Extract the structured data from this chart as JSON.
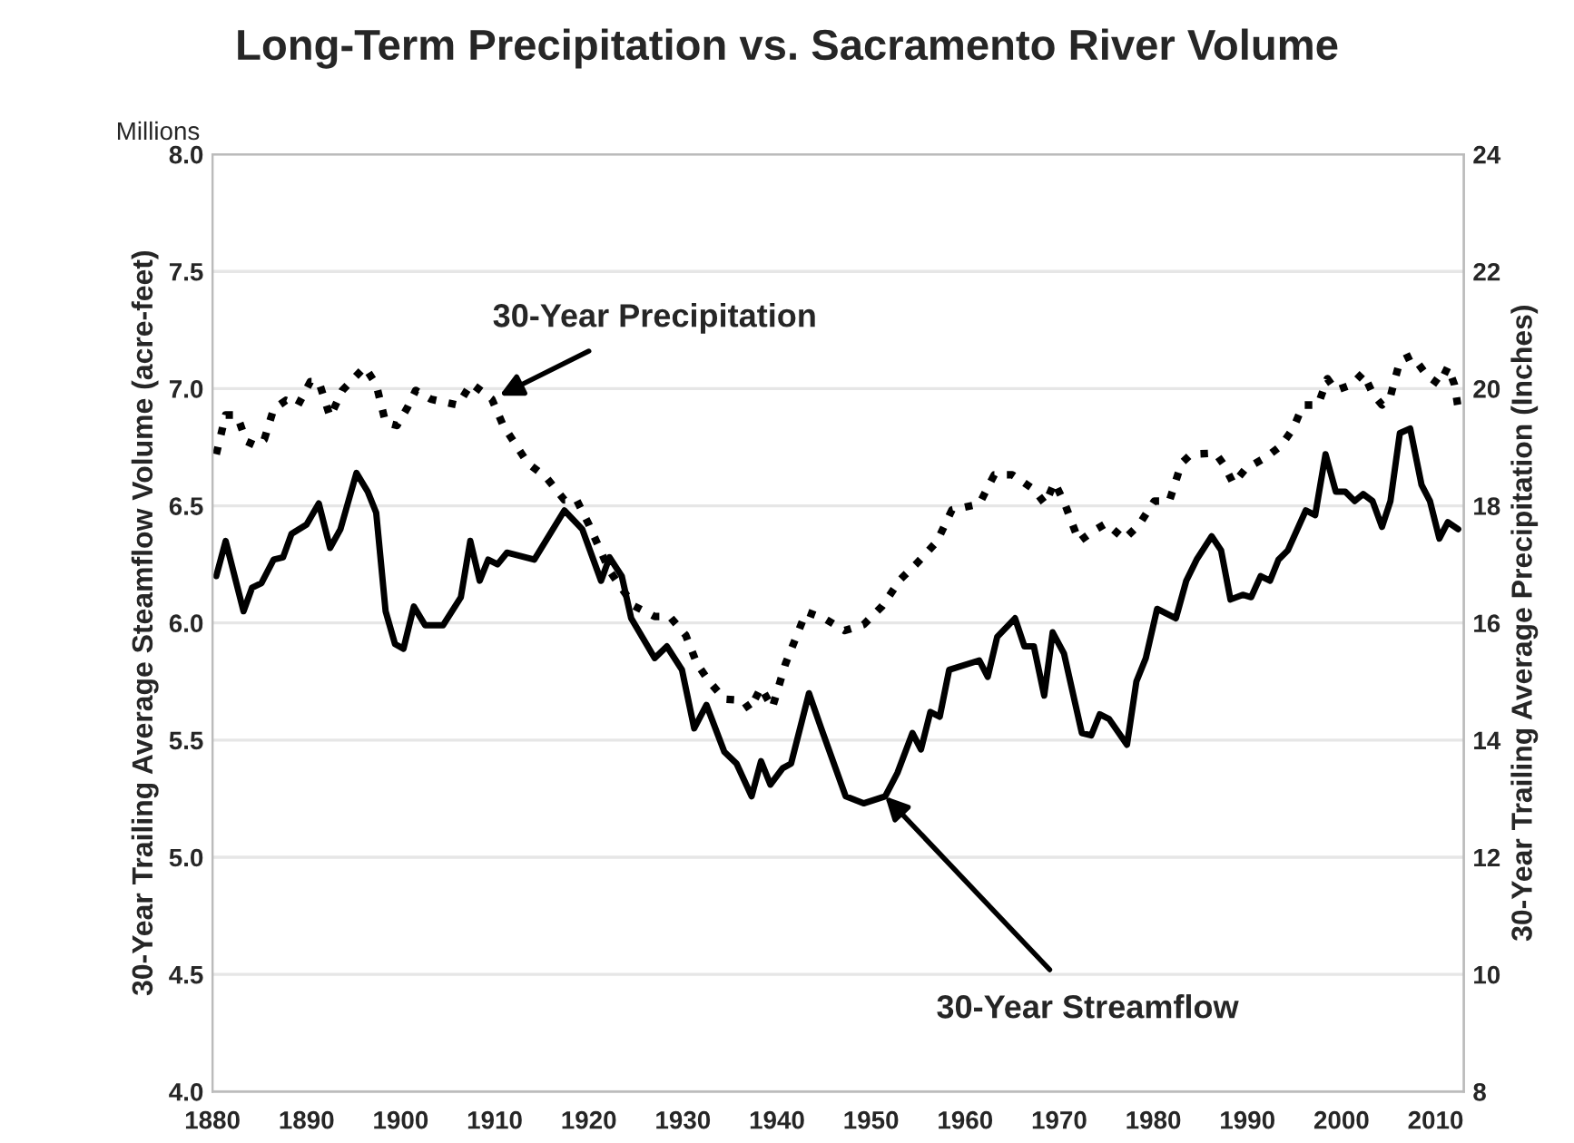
{
  "chart_data": {
    "type": "line",
    "title": "Long-Term Precipitation vs. Sacramento River Volume",
    "ylabel": "30-Year Trailing Average Steamflow Volume (acre-feet)",
    "y2label": "30-Year Trailing Average Precipitation (Inches)",
    "annotations": [
      "Millions",
      {
        "text": "30-Year Precipitation",
        "x": 1910.5,
        "y": 6.97
      },
      {
        "text": "30-Year Streamflow",
        "x": 1951.5,
        "y": 5.26
      }
    ],
    "series": [
      {
        "line_style": "solid",
        "color": "#000000",
        "x": [
          1880.4,
          1881.4,
          1883.3,
          1884.2,
          1885.2,
          1886.5,
          1887.5,
          1888.4,
          1890.0,
          1891.3,
          1892.5,
          1893.6,
          1895.3,
          1896.5,
          1897.4,
          1898.4,
          1899.4,
          1900.3,
          1901.4,
          1902.6,
          1904.5,
          1906.4,
          1907.4,
          1908.4,
          1909.3,
          1910.3,
          1911.3,
          1914.2,
          1917.4,
          1919.3,
          1921.3,
          1922.2,
          1923.5,
          1924.5,
          1927.0,
          1928.3,
          1929.9,
          1931.2,
          1932.5,
          1934.4,
          1935.7,
          1937.3,
          1938.3,
          1939.3,
          1940.6,
          1941.5,
          1943.4,
          1944.7,
          1947.3,
          1949.2,
          1951.5,
          1952.8,
          1954.4,
          1955.3,
          1956.3,
          1957.3,
          1958.3,
          1961.5,
          1962.4,
          1963.4,
          1965.3,
          1966.3,
          1967.3,
          1968.4,
          1969.3,
          1970.5,
          1972.4,
          1973.4,
          1974.3,
          1975.3,
          1977.2,
          1978.2,
          1979.2,
          1980.4,
          1982.4,
          1983.5,
          1984.6,
          1986.2,
          1987.2,
          1988.2,
          1989.5,
          1990.4,
          1991.4,
          1992.4,
          1993.3,
          1994.3,
          1996.2,
          1997.2,
          1998.3,
          1999.4,
          2000.4,
          2001.4,
          2002.3,
          2003.3,
          2004.3,
          2005.2,
          2006.2,
          2007.3,
          2008.5,
          2009.4,
          2010.4,
          2011.3,
          2012.4
        ],
        "values": [
          6.2,
          6.35,
          6.05,
          6.15,
          6.17,
          6.27,
          6.28,
          6.38,
          6.42,
          6.51,
          6.32,
          6.4,
          6.64,
          6.56,
          6.47,
          6.05,
          5.91,
          5.89,
          6.07,
          5.99,
          5.99,
          6.11,
          6.35,
          6.18,
          6.27,
          6.25,
          6.3,
          6.27,
          6.48,
          6.4,
          6.18,
          6.28,
          6.2,
          6.02,
          5.85,
          5.9,
          5.8,
          5.55,
          5.65,
          5.45,
          5.4,
          5.26,
          5.41,
          5.31,
          5.38,
          5.4,
          5.7,
          5.55,
          5.26,
          5.23,
          5.26,
          5.36,
          5.53,
          5.46,
          5.62,
          5.6,
          5.8,
          5.84,
          5.77,
          5.94,
          6.02,
          5.9,
          5.9,
          5.69,
          5.96,
          5.87,
          5.53,
          5.52,
          5.61,
          5.59,
          5.48,
          5.75,
          5.85,
          6.06,
          6.02,
          6.18,
          6.27,
          6.37,
          6.31,
          6.1,
          6.12,
          6.11,
          6.2,
          6.18,
          6.27,
          6.31,
          6.48,
          6.46,
          6.72,
          6.56,
          6.56,
          6.52,
          6.55,
          6.52,
          6.41,
          6.52,
          6.81,
          6.83,
          6.59,
          6.52,
          6.36,
          6.43,
          6.4
        ]
      },
      {
        "line_style": "dotted",
        "axis": "y2",
        "color": "#000000",
        "x": [
          1880.4,
          1881.4,
          1882.6,
          1883.6,
          1884.6,
          1885.5,
          1886.5,
          1887.8,
          1889.1,
          1890.4,
          1891.3,
          1892.5,
          1893.8,
          1896.2,
          1897.4,
          1898.4,
          1899.6,
          1900.7,
          1901.6,
          1903.2,
          1906.1,
          1907.5,
          1909.7,
          1910.9,
          1913.5,
          1915.5,
          1917.4,
          1918.7,
          1920.0,
          1922.2,
          1924.8,
          1927.0,
          1928.6,
          1930.3,
          1931.5,
          1932.8,
          1934.4,
          1936.4,
          1937.1,
          1938.3,
          1939.5,
          1940.9,
          1943.1,
          1945.1,
          1947.2,
          1949.2,
          1951.2,
          1953.1,
          1955.0,
          1957.0,
          1958.6,
          1961.5,
          1963.1,
          1965.0,
          1967.3,
          1968.5,
          1969.5,
          1970.6,
          1972.1,
          1973.7,
          1975.0,
          1976.9,
          1978.5,
          1980.1,
          1981.7,
          1983.0,
          1984.0,
          1986.6,
          1987.5,
          1988.5,
          1989.8,
          1992.0,
          1993.6,
          1994.9,
          1995.9,
          1997.5,
          1998.5,
          1999.4,
          2001.1,
          2002.3,
          2003.3,
          2004.3,
          2005.2,
          2006.2,
          2007.5,
          2009.1,
          2010.4,
          2011.3,
          2012.0,
          2012.4
        ],
        "values": [
          18.88,
          19.55,
          19.55,
          19.1,
          19.03,
          19.13,
          19.65,
          19.8,
          19.72,
          20.12,
          20.12,
          19.52,
          19.97,
          20.37,
          20.07,
          19.42,
          19.37,
          19.67,
          19.97,
          19.82,
          19.72,
          20.09,
          19.82,
          19.37,
          18.73,
          18.48,
          18.1,
          18.1,
          17.68,
          16.89,
          16.29,
          16.11,
          16.11,
          15.79,
          15.3,
          15.0,
          14.7,
          14.68,
          14.52,
          14.9,
          14.55,
          15.3,
          16.19,
          16.07,
          15.87,
          15.97,
          16.29,
          16.74,
          17.04,
          17.39,
          17.93,
          18.03,
          18.53,
          18.53,
          18.28,
          18.03,
          18.4,
          18.03,
          17.39,
          17.58,
          17.7,
          17.43,
          17.68,
          18.08,
          18.08,
          18.73,
          18.88,
          18.9,
          18.7,
          18.38,
          18.63,
          18.83,
          19.03,
          19.33,
          19.72,
          19.72,
          20.17,
          19.97,
          20.07,
          20.27,
          19.92,
          19.72,
          19.87,
          20.47,
          20.57,
          20.22,
          20.07,
          20.37,
          20.07,
          19.67
        ]
      }
    ],
    "xlim": [
      1880,
      2013
    ],
    "xticks": [
      1880,
      1890,
      1900,
      1910,
      1920,
      1930,
      1940,
      1950,
      1960,
      1970,
      1980,
      1990,
      2000,
      2010
    ],
    "ylim": [
      4,
      8
    ],
    "yticks": [
      {
        "value": 4,
        "label": "4.0"
      },
      {
        "value": 4.5,
        "label": "4.5"
      },
      {
        "value": 5,
        "label": "5.0"
      },
      {
        "value": 5.5,
        "label": "5.5"
      },
      {
        "value": 6,
        "label": "6.0"
      },
      {
        "value": 6.5,
        "label": "6.5"
      },
      {
        "value": 7,
        "label": "7.0"
      },
      {
        "value": 7.5,
        "label": "7.5"
      },
      {
        "value": 8,
        "label": "8.0"
      }
    ],
    "y2lim": [
      8,
      24
    ],
    "y2ticks": [
      8,
      10,
      12,
      14,
      16,
      18,
      20,
      22,
      24
    ],
    "grid": "y",
    "legend": false
  }
}
